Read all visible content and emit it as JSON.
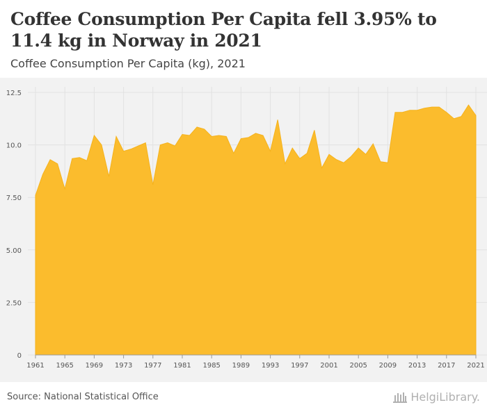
{
  "header": {
    "title": "Coffee Consumption Per Capita fell 3.95% to 11.4 kg in Norway in 2021",
    "subtitle": "Coffee Consumption Per Capita (kg), 2021"
  },
  "footer": {
    "source": "Source: National Statistical Office",
    "logo_text": "HelgiLibrary."
  },
  "colors": {
    "area_fill": "#fbbc2d",
    "area_stroke": "#f5b21c",
    "grid": "#e2e2e2",
    "plot_bg": "#f2f2f2"
  },
  "chart_data": {
    "type": "area",
    "title": "Coffee Consumption Per Capita fell 3.95% to 11.4 kg in Norway in 2021",
    "subtitle": "Coffee Consumption Per Capita (kg), 2021",
    "xlabel": "",
    "ylabel": "",
    "ylim": [
      0,
      12.5
    ],
    "xlim": [
      1961,
      2021
    ],
    "grid": true,
    "yticks": [
      "0",
      "2.50",
      "5.00",
      "7.50",
      "10.0",
      "12.5"
    ],
    "ytick_values": [
      0,
      2.5,
      5,
      7.5,
      10,
      12.5
    ],
    "xticks": [
      1961,
      1965,
      1969,
      1973,
      1977,
      1981,
      1985,
      1989,
      1993,
      1997,
      2001,
      2005,
      2009,
      2013,
      2017,
      2021
    ],
    "x": [
      1961,
      1962,
      1963,
      1964,
      1965,
      1966,
      1967,
      1968,
      1969,
      1970,
      1971,
      1972,
      1973,
      1974,
      1975,
      1976,
      1977,
      1978,
      1979,
      1980,
      1981,
      1982,
      1983,
      1984,
      1985,
      1986,
      1987,
      1988,
      1989,
      1990,
      1991,
      1992,
      1993,
      1994,
      1995,
      1996,
      1997,
      1998,
      1999,
      2000,
      2001,
      2002,
      2003,
      2004,
      2005,
      2006,
      2007,
      2008,
      2009,
      2010,
      2011,
      2012,
      2013,
      2014,
      2015,
      2016,
      2017,
      2018,
      2019,
      2020,
      2021
    ],
    "series": [
      {
        "name": "Coffee Consumption Per Capita (kg)",
        "values": [
          7.6,
          8.6,
          9.3,
          9.1,
          7.9,
          9.35,
          9.4,
          9.25,
          10.45,
          10.0,
          8.5,
          10.4,
          9.7,
          9.8,
          9.95,
          10.1,
          8.1,
          10.0,
          10.1,
          9.95,
          10.5,
          10.45,
          10.85,
          10.75,
          10.4,
          10.45,
          10.4,
          9.6,
          10.3,
          10.35,
          10.55,
          10.45,
          9.7,
          11.2,
          9.1,
          9.85,
          9.35,
          9.6,
          10.7,
          8.9,
          9.55,
          9.3,
          9.15,
          9.45,
          9.85,
          9.55,
          10.05,
          9.2,
          9.15,
          11.55,
          11.55,
          11.65,
          11.65,
          11.75,
          11.8,
          11.8,
          11.55,
          11.25,
          11.35,
          11.9,
          11.4
        ]
      }
    ]
  }
}
